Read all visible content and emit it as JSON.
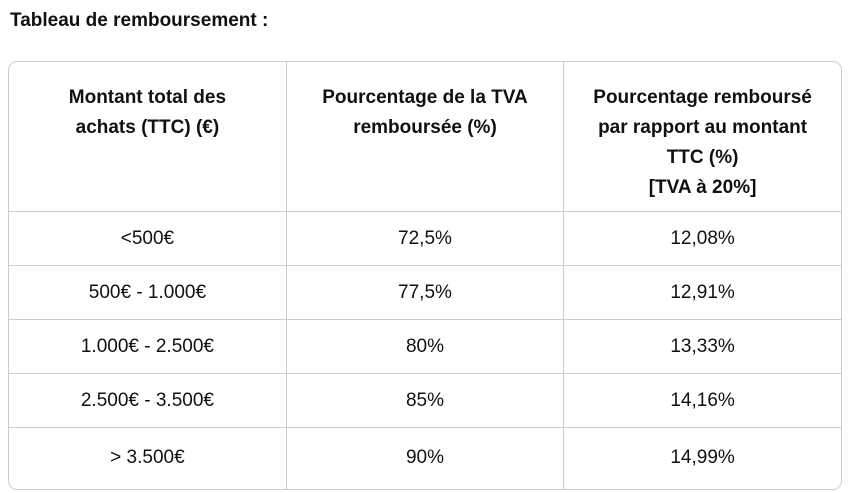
{
  "page_title": "Tableau de remboursement :",
  "chart_data": {
    "type": "table",
    "title": "Tableau de remboursement :",
    "columns": [
      "Montant total des\nachats (TTC) (€)",
      "Pourcentage de la TVA\nremboursée (%)",
      "Pourcentage remboursé\npar rapport au montant\nTTC (%)\n[TVA à 20%]"
    ],
    "rows": [
      [
        "<500€",
        "72,5%",
        "12,08%"
      ],
      [
        "500€ - 1.000€",
        "77,5%",
        "12,91%"
      ],
      [
        "1.000€ - 2.500€",
        "80%",
        "13,33%"
      ],
      [
        "2.500€ - 3.500€",
        "85%",
        "14,16%"
      ],
      [
        "> 3.500€",
        "90%",
        "14,99%"
      ]
    ]
  },
  "colors": {
    "border": "#cdcdcd",
    "text": "#111111",
    "background": "#ffffff"
  }
}
